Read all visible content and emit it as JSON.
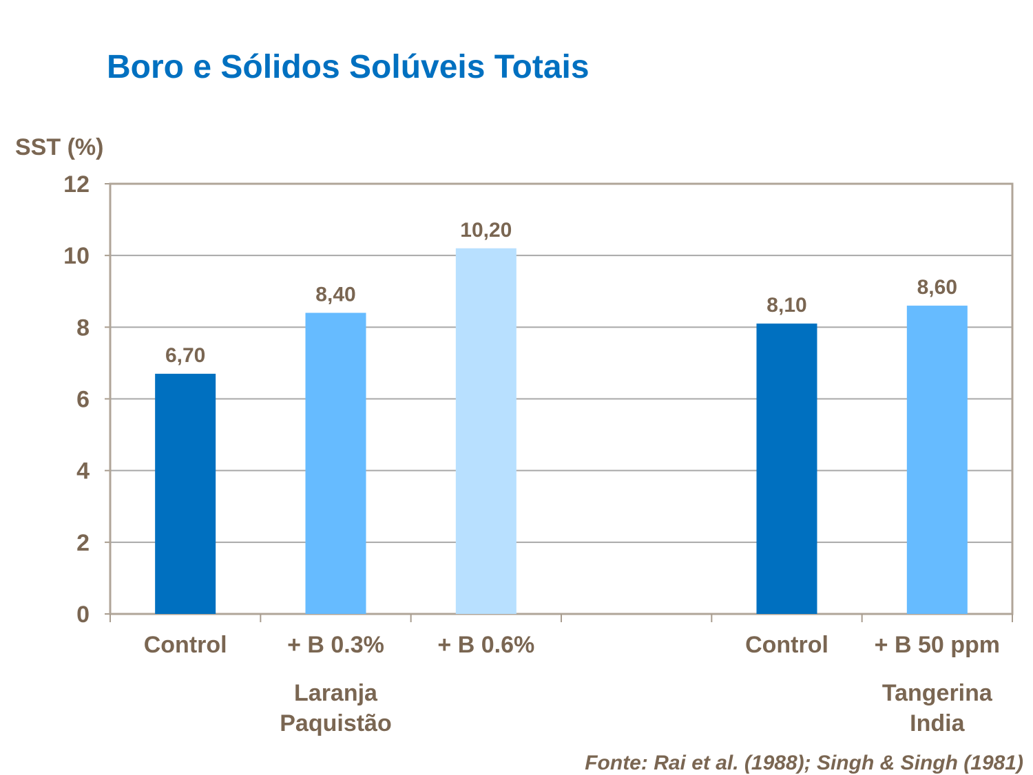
{
  "chart_data": {
    "type": "bar",
    "title": "Boro e Sólidos Solúveis Totais",
    "ylabel": "SST (%)",
    "xlabel": "",
    "ylim": [
      0,
      12
    ],
    "yticks": [
      "0",
      "2",
      "4",
      "6",
      "8",
      "10",
      "12"
    ],
    "grid": true,
    "categories": [
      "Control",
      "+ B 0.3%",
      "+ B 0.6%",
      "",
      "Control",
      "+ B 50 ppm"
    ],
    "values": [
      6.7,
      8.4,
      10.2,
      null,
      8.1,
      8.6
    ],
    "data_labels": [
      "6,70",
      "8,40",
      "10,20",
      "",
      "8,10",
      "8,60"
    ],
    "bar_colors": [
      "#0070C0",
      "#66BBFF",
      "#B8E0FF",
      "",
      "#0070C0",
      "#66BBFF"
    ],
    "groups": [
      {
        "label_lines": [
          "Laranja",
          "Paquistão"
        ],
        "center_category": 1
      },
      {
        "label_lines": [
          "Tangerina",
          "India"
        ],
        "center_category": 5
      }
    ],
    "source": "Fonte: Rai et al. (1988); Singh & Singh (1981)"
  }
}
